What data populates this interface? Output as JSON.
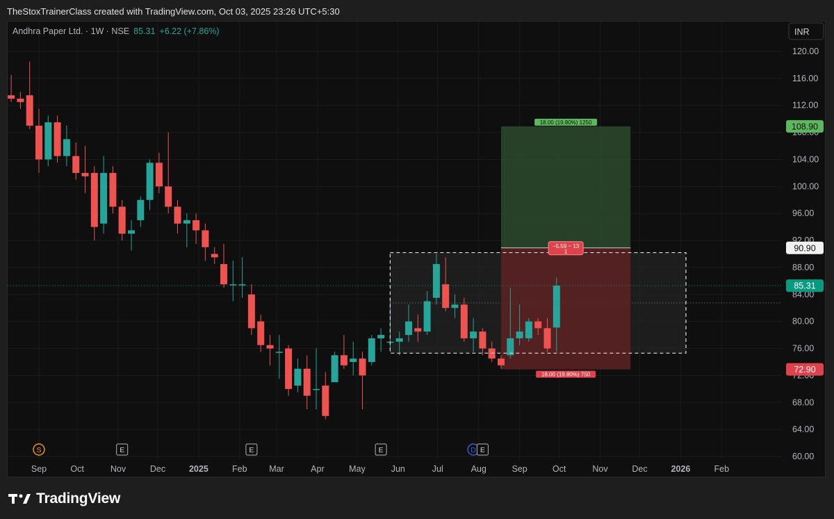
{
  "attribution": "TheStoxTrainerClass created with TradingView.com, Oct 03, 2025 23:26 UTC+5:30",
  "brand": "TradingView",
  "currency": "INR",
  "colors": {
    "up": "#26a69a",
    "down": "#ef5350",
    "target_zone": "#2b4a2e",
    "stop_zone": "#5e2224",
    "price_label": "#089981"
  },
  "symbol_header": {
    "name": "Andhra Paper Ltd. · 1W · NSE",
    "last": "85.31",
    "change": "+6.22 (+7.86%)"
  },
  "price_tags": [
    {
      "value": 108.9,
      "text": "108.90",
      "kind": "target"
    },
    {
      "value": 90.9,
      "text": "90.90",
      "kind": "entry"
    },
    {
      "value": 85.31,
      "text": "85.31",
      "kind": "last"
    },
    {
      "value": 72.9,
      "text": "72.90",
      "kind": "stop"
    }
  ],
  "position_labels": {
    "target": "18.00 (19.80%) 1250",
    "stop": "18.00 (19.80%) 750",
    "pnl_line1": "−5.59 ~ 13",
    "pnl_line2": "1"
  },
  "event_markers": [
    {
      "label": "S",
      "x": "2024-09-02",
      "kind": "split"
    },
    {
      "label": "E",
      "x": "2024-11-04",
      "kind": "earnings"
    },
    {
      "label": "E",
      "x": "2025-02-10",
      "kind": "earnings"
    },
    {
      "label": "E",
      "x": "2025-05-19",
      "kind": "earnings"
    },
    {
      "label": "D",
      "x": "2025-07-28",
      "kind": "dividend"
    },
    {
      "label": "E",
      "x": "2025-08-04",
      "kind": "earnings"
    }
  ],
  "chart_data": {
    "type": "candlestick",
    "x_type": "weekly dates",
    "ylim": [
      60,
      122
    ],
    "y_ticks": [
      "120.00",
      "116.00",
      "112.00",
      "108.00",
      "104.00",
      "100.00",
      "96.00",
      "92.00",
      "88.00",
      "84.00",
      "80.00",
      "76.00",
      "72.00",
      "68.00",
      "64.00",
      "60.00"
    ],
    "x_ticks": [
      {
        "label": "Sep",
        "x": "2024-09-02"
      },
      {
        "label": "Oct",
        "x": "2024-10-01"
      },
      {
        "label": "Nov",
        "x": "2024-11-01"
      },
      {
        "label": "Dec",
        "x": "2024-12-01"
      },
      {
        "label": "2025",
        "x": "2025-01-01"
      },
      {
        "label": "Feb",
        "x": "2025-02-01"
      },
      {
        "label": "Mar",
        "x": "2025-03-01"
      },
      {
        "label": "Apr",
        "x": "2025-04-01"
      },
      {
        "label": "May",
        "x": "2025-05-01"
      },
      {
        "label": "Jun",
        "x": "2025-06-01"
      },
      {
        "label": "Jul",
        "x": "2025-07-01"
      },
      {
        "label": "Aug",
        "x": "2025-08-01"
      },
      {
        "label": "Sep",
        "x": "2025-09-01"
      },
      {
        "label": "Oct",
        "x": "2025-10-01"
      },
      {
        "label": "Nov",
        "x": "2025-11-01"
      },
      {
        "label": "Dec",
        "x": "2025-12-01"
      },
      {
        "label": "2026",
        "x": "2026-01-01"
      },
      {
        "label": "Feb",
        "x": "2026-02-01"
      }
    ],
    "candles": [
      {
        "x": "2024-07-29",
        "o": 108.5,
        "h": 110.0,
        "l": 103.5,
        "c": 104.5
      },
      {
        "x": "2024-08-05",
        "o": 104.5,
        "h": 116.0,
        "l": 104.0,
        "c": 113.5
      },
      {
        "x": "2024-08-12",
        "o": 113.5,
        "h": 116.5,
        "l": 112.5,
        "c": 113.0
      },
      {
        "x": "2024-08-19",
        "o": 113.0,
        "h": 114.0,
        "l": 111.5,
        "c": 112.5
      },
      {
        "x": "2024-08-26",
        "o": 113.5,
        "h": 118.5,
        "l": 108.5,
        "c": 109.0
      },
      {
        "x": "2024-09-02",
        "o": 109.0,
        "h": 111.5,
        "l": 102.0,
        "c": 104.0
      },
      {
        "x": "2024-09-09",
        "o": 104.0,
        "h": 110.5,
        "l": 103.0,
        "c": 109.5
      },
      {
        "x": "2024-09-16",
        "o": 109.5,
        "h": 110.5,
        "l": 103.5,
        "c": 104.5
      },
      {
        "x": "2024-09-23",
        "o": 104.5,
        "h": 109.0,
        "l": 103.0,
        "c": 107.0
      },
      {
        "x": "2024-09-30",
        "o": 104.5,
        "h": 106.5,
        "l": 101.0,
        "c": 102.0
      },
      {
        "x": "2024-10-07",
        "o": 102.0,
        "h": 106.0,
        "l": 99.0,
        "c": 101.5
      },
      {
        "x": "2024-10-14",
        "o": 102.0,
        "h": 103.0,
        "l": 92.0,
        "c": 94.0
      },
      {
        "x": "2024-10-21",
        "o": 94.5,
        "h": 104.5,
        "l": 93.0,
        "c": 102.0
      },
      {
        "x": "2024-10-28",
        "o": 102.0,
        "h": 103.0,
        "l": 96.0,
        "c": 97.0
      },
      {
        "x": "2024-11-04",
        "o": 97.0,
        "h": 98.0,
        "l": 92.0,
        "c": 93.0
      },
      {
        "x": "2024-11-11",
        "o": 93.0,
        "h": 95.0,
        "l": 90.5,
        "c": 93.5
      },
      {
        "x": "2024-11-18",
        "o": 95.0,
        "h": 98.5,
        "l": 94.0,
        "c": 98.0
      },
      {
        "x": "2024-11-25",
        "o": 98.0,
        "h": 104.0,
        "l": 96.5,
        "c": 103.5
      },
      {
        "x": "2024-12-02",
        "o": 103.5,
        "h": 105.0,
        "l": 99.0,
        "c": 100.0
      },
      {
        "x": "2024-12-09",
        "o": 100.0,
        "h": 108.0,
        "l": 96.0,
        "c": 97.0
      },
      {
        "x": "2024-12-16",
        "o": 97.0,
        "h": 98.0,
        "l": 93.0,
        "c": 94.5
      },
      {
        "x": "2024-12-23",
        "o": 94.5,
        "h": 96.0,
        "l": 91.0,
        "c": 95.0
      },
      {
        "x": "2024-12-30",
        "o": 95.0,
        "h": 96.0,
        "l": 91.5,
        "c": 93.5
      },
      {
        "x": "2025-01-06",
        "o": 93.5,
        "h": 94.5,
        "l": 89.0,
        "c": 91.0
      },
      {
        "x": "2025-01-13",
        "o": 90.0,
        "h": 91.0,
        "l": 88.5,
        "c": 89.5
      },
      {
        "x": "2025-01-20",
        "o": 88.5,
        "h": 91.5,
        "l": 85.0,
        "c": 85.5
      },
      {
        "x": "2025-01-27",
        "o": 85.5,
        "h": 89.0,
        "l": 83.0,
        "c": 85.5
      },
      {
        "x": "2025-02-03",
        "o": 85.5,
        "h": 89.5,
        "l": 83.5,
        "c": 85.5
      },
      {
        "x": "2025-02-10",
        "o": 84.0,
        "h": 85.5,
        "l": 78.0,
        "c": 79.0
      },
      {
        "x": "2025-02-17",
        "o": 80.0,
        "h": 81.0,
        "l": 75.5,
        "c": 76.5
      },
      {
        "x": "2025-02-24",
        "o": 76.5,
        "h": 78.0,
        "l": 73.5,
        "c": 76.0
      },
      {
        "x": "2025-03-03",
        "o": 75.5,
        "h": 78.0,
        "l": 71.5,
        "c": 75.5
      },
      {
        "x": "2025-03-10",
        "o": 76.0,
        "h": 76.5,
        "l": 69.0,
        "c": 70.0
      },
      {
        "x": "2025-03-17",
        "o": 70.5,
        "h": 74.5,
        "l": 69.5,
        "c": 73.0
      },
      {
        "x": "2025-03-24",
        "o": 73.0,
        "h": 75.0,
        "l": 67.0,
        "c": 69.0
      },
      {
        "x": "2025-03-31",
        "o": 70.0,
        "h": 76.0,
        "l": 67.0,
        "c": 70.0
      },
      {
        "x": "2025-04-07",
        "o": 70.5,
        "h": 72.5,
        "l": 65.5,
        "c": 66.0
      },
      {
        "x": "2025-04-14",
        "o": 71.0,
        "h": 75.5,
        "l": 71.0,
        "c": 75.0
      },
      {
        "x": "2025-04-21",
        "o": 75.0,
        "h": 78.0,
        "l": 73.0,
        "c": 73.5
      },
      {
        "x": "2025-04-28",
        "o": 74.0,
        "h": 77.0,
        "l": 72.0,
        "c": 74.5
      },
      {
        "x": "2025-05-05",
        "o": 74.5,
        "h": 75.5,
        "l": 67.0,
        "c": 72.0
      },
      {
        "x": "2025-05-12",
        "o": 74.0,
        "h": 78.0,
        "l": 73.5,
        "c": 77.5
      },
      {
        "x": "2025-05-19",
        "o": 77.5,
        "h": 79.0,
        "l": 75.5,
        "c": 78.0
      },
      {
        "x": "2025-05-26",
        "o": 77.0,
        "h": 83.5,
        "l": 75.5,
        "c": 77.0
      },
      {
        "x": "2025-06-02",
        "o": 77.0,
        "h": 78.5,
        "l": 75.0,
        "c": 77.5
      },
      {
        "x": "2025-06-09",
        "o": 78.0,
        "h": 82.5,
        "l": 77.0,
        "c": 80.0
      },
      {
        "x": "2025-06-16",
        "o": 79.0,
        "h": 81.0,
        "l": 77.0,
        "c": 78.5
      },
      {
        "x": "2025-06-23",
        "o": 78.5,
        "h": 84.5,
        "l": 78.0,
        "c": 83.0
      },
      {
        "x": "2025-06-30",
        "o": 83.5,
        "h": 90.0,
        "l": 82.5,
        "c": 88.5
      },
      {
        "x": "2025-07-07",
        "o": 85.5,
        "h": 89.5,
        "l": 81.5,
        "c": 82.0
      },
      {
        "x": "2025-07-14",
        "o": 82.0,
        "h": 84.0,
        "l": 80.5,
        "c": 82.5
      },
      {
        "x": "2025-07-21",
        "o": 82.5,
        "h": 83.5,
        "l": 77.0,
        "c": 77.5
      },
      {
        "x": "2025-07-28",
        "o": 77.5,
        "h": 80.5,
        "l": 75.5,
        "c": 78.5
      },
      {
        "x": "2025-08-04",
        "o": 78.5,
        "h": 79.0,
        "l": 75.0,
        "c": 76.0
      },
      {
        "x": "2025-08-11",
        "o": 76.0,
        "h": 77.0,
        "l": 74.0,
        "c": 74.5
      },
      {
        "x": "2025-08-18",
        "o": 74.5,
        "h": 75.0,
        "l": 73.0,
        "c": 73.5
      },
      {
        "x": "2025-08-25",
        "o": 75.0,
        "h": 85.0,
        "l": 74.5,
        "c": 77.5
      },
      {
        "x": "2025-09-01",
        "o": 77.5,
        "h": 82.5,
        "l": 76.5,
        "c": 78.5
      },
      {
        "x": "2025-09-08",
        "o": 77.5,
        "h": 80.5,
        "l": 77.0,
        "c": 80.0
      },
      {
        "x": "2025-09-15",
        "o": 80.0,
        "h": 80.5,
        "l": 78.0,
        "c": 79.0
      },
      {
        "x": "2025-09-22",
        "o": 79.0,
        "h": 80.5,
        "l": 75.5,
        "c": 76.0
      },
      {
        "x": "2025-09-29",
        "o": 79.1,
        "h": 86.5,
        "l": 75.5,
        "c": 85.31
      }
    ],
    "long_position": {
      "x_start": "2025-08-18",
      "x_end": "2025-11-24",
      "entry": 90.9,
      "target": 108.9,
      "stop": 72.9
    },
    "range_box": {
      "x_start": "2025-05-26",
      "x_end": "2026-01-05",
      "top": 90.2,
      "bottom": 75.3,
      "mid": 82.75
    }
  }
}
